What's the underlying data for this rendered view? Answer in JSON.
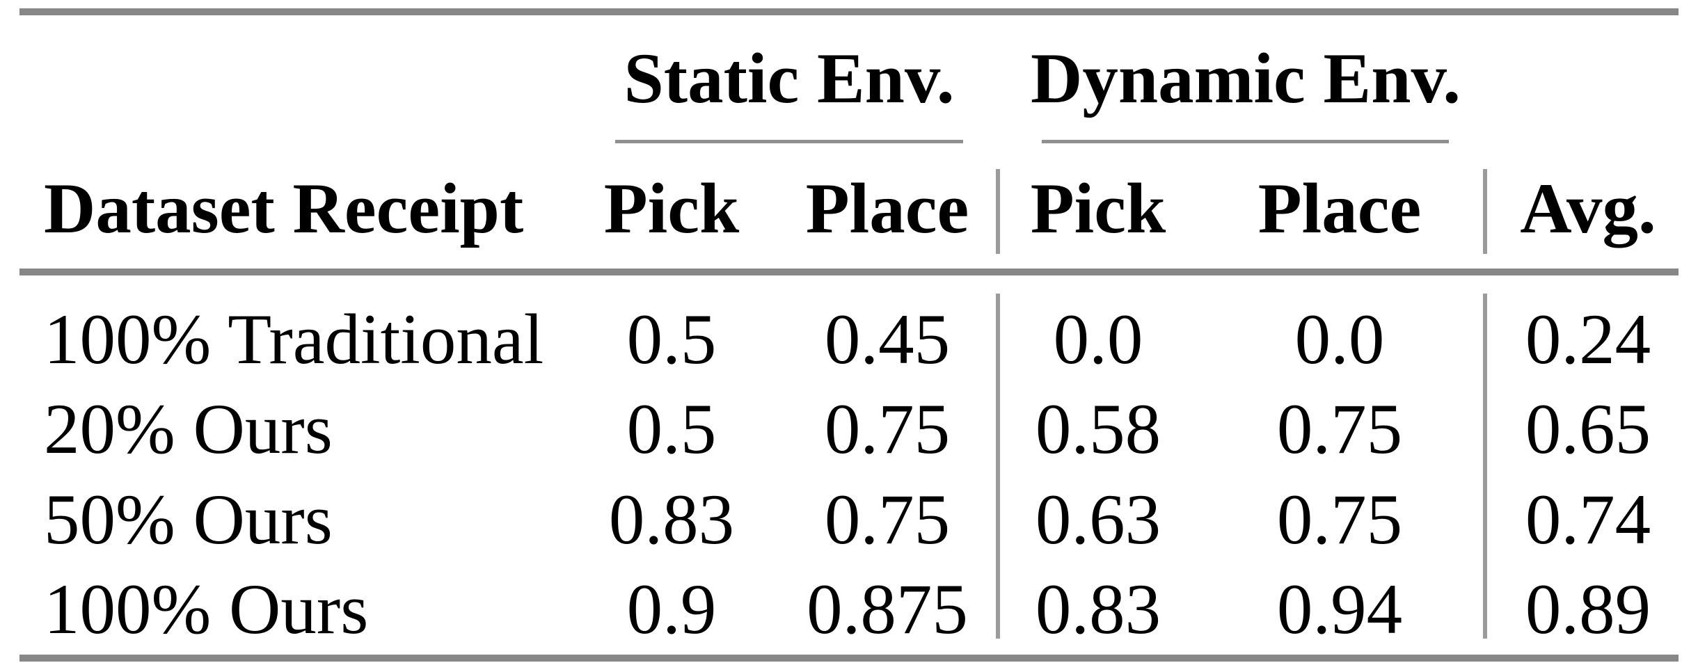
{
  "table": {
    "groups": [
      {
        "label": "Static Env."
      },
      {
        "label": "Dynamic Env."
      }
    ],
    "headers": {
      "row_label": "Dataset Receipt",
      "static_pick": "Pick",
      "static_place": "Place",
      "dynamic_pick": "Pick",
      "dynamic_place": "Place",
      "avg": "Avg."
    },
    "rows": [
      [
        "100% Traditional",
        "0.5",
        "0.45",
        "0.0",
        "0.0",
        "0.24"
      ],
      [
        "20% Ours",
        "0.5",
        "0.75",
        "0.58",
        "0.75",
        "0.65"
      ],
      [
        "50% Ours",
        "0.83",
        "0.75",
        "0.63",
        "0.75",
        "0.74"
      ],
      [
        "100% Ours",
        "0.9",
        "0.875",
        "0.83",
        "0.94",
        "0.89"
      ]
    ]
  },
  "chart_data": {
    "type": "table",
    "column_groups": [
      "",
      "Static Env.",
      "Static Env.",
      "Dynamic Env.",
      "Dynamic Env.",
      ""
    ],
    "columns": [
      "Dataset Receipt",
      "Pick",
      "Place",
      "Pick",
      "Place",
      "Avg."
    ],
    "rows": [
      [
        "100% Traditional",
        0.5,
        0.45,
        0.0,
        0.0,
        0.24
      ],
      [
        "20% Ours",
        0.5,
        0.75,
        0.58,
        0.75,
        0.65
      ],
      [
        "50% Ours",
        0.83,
        0.75,
        0.63,
        0.75,
        0.74
      ],
      [
        "100% Ours",
        0.9,
        0.875,
        0.83,
        0.94,
        0.89
      ]
    ]
  },
  "colors": {
    "background": "#ffffff",
    "text": "#000000",
    "rule_heavy": "#878787",
    "rule_group_underline": "#8f8f8f",
    "rule_vertical": "#9b9b9b"
  }
}
